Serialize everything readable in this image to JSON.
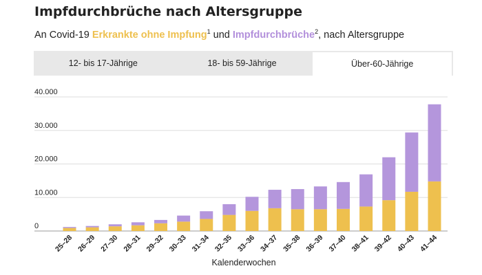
{
  "header": {
    "title": "Impfdurchbrüche nach Altersgruppe",
    "subtitle_pre": "An Covid-19 ",
    "subtitle_hl1": "Erkrankte ohne Impfung",
    "subtitle_sup1": "1",
    "subtitle_mid": " und ",
    "subtitle_hl2": "Impfdurchbrüche",
    "subtitle_sup2": "2",
    "subtitle_post": ", nach Altersgruppe"
  },
  "tabs": [
    {
      "label": "12- bis 17-Jährige",
      "active": false
    },
    {
      "label": "18- bis 59-Jährige",
      "active": false
    },
    {
      "label": "Über-60-Jährige",
      "active": true
    }
  ],
  "colors": {
    "unvaccinated": "#eec04e",
    "breakthrough": "#b496dc",
    "grid": "#dddddd"
  },
  "chart_data": {
    "type": "bar",
    "stacked": true,
    "categories": [
      "25–28",
      "26–29",
      "27–30",
      "28–31",
      "29–32",
      "30–33",
      "31–34",
      "32–35",
      "33–36",
      "34–37",
      "35–38",
      "36–39",
      "37–40",
      "38–41",
      "39–42",
      "40–43",
      "41–44"
    ],
    "series": [
      {
        "name": "Erkrankte ohne Impfung",
        "values": [
          900,
          1100,
          1400,
          1700,
          2300,
          2800,
          3600,
          4800,
          6000,
          6800,
          6500,
          6500,
          6600,
          7300,
          9200,
          11700,
          14800
        ]
      },
      {
        "name": "Impfdurchbrüche",
        "values": [
          300,
          400,
          600,
          900,
          1000,
          1800,
          2300,
          3200,
          4200,
          5500,
          6000,
          6800,
          8000,
          9600,
          12800,
          17700,
          23000
        ]
      }
    ],
    "yticks": [
      "40.000",
      "30.000",
      "20.000",
      "10.000",
      "0"
    ],
    "ylim": [
      0,
      40000
    ],
    "xlabel": "Kalenderwochen",
    "grid": true
  }
}
